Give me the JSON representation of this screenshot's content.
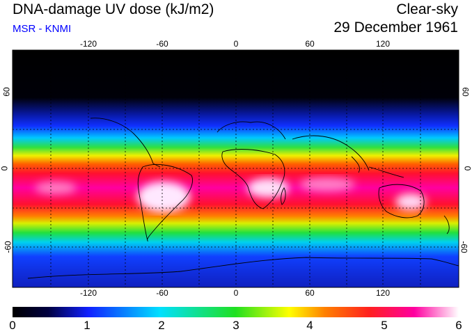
{
  "header": {
    "title": "DNA-damage UV dose (kJ/m2)",
    "subtitle": "MSR - KNMI",
    "mode": "Clear-sky",
    "date": "29 December 1961"
  },
  "map": {
    "lon_ticks": [
      "-120",
      "-60",
      "0",
      "60",
      "120"
    ],
    "lat_ticks_left": [
      "60",
      "0",
      "-60"
    ],
    "lat_ticks_right": [
      "60",
      "0",
      "-60"
    ],
    "lon_range": [
      -180,
      180
    ],
    "lat_range": [
      -90,
      90
    ],
    "palette": [
      "#000000",
      "#1020ff",
      "#00e0ff",
      "#20e020",
      "#ffff00",
      "#ff2020",
      "#ff00a0",
      "#ffffff"
    ]
  },
  "colorbar": {
    "labels": [
      "0",
      "1",
      "2",
      "3",
      "4",
      "5",
      "6"
    ],
    "min": 0,
    "max": 6
  }
}
